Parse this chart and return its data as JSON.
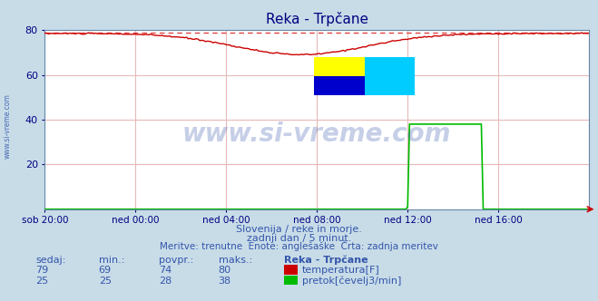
{
  "title": "Reka - Trpčane",
  "bg_color": "#c8dce8",
  "plot_bg_color": "#ffffff",
  "grid_color": "#e8b8b8",
  "title_color": "#000080",
  "tick_color": "#000080",
  "watermark_color": "#3355aa",
  "ylim": [
    0,
    80
  ],
  "yticks": [
    20,
    40,
    60,
    80
  ],
  "xlim": [
    0,
    288
  ],
  "xtick_positions": [
    0,
    48,
    96,
    144,
    192,
    240
  ],
  "xtick_labels": [
    "sob 20:00",
    "ned 00:00",
    "ned 04:00",
    "ned 08:00",
    "ned 12:00",
    "ned 16:00"
  ],
  "temp_color": "#cc0000",
  "flow_color": "#00bb00",
  "dashed_line_color": "#dd4444",
  "dashed_line_y": 79,
  "subtitle1": "Slovenija / reke in morje.",
  "subtitle2": "zadnji dan / 5 minut.",
  "subtitle3": "Meritve: trenutne  Enote: anglešaške  Črta: zadnja meritev",
  "table_headers": [
    "sedaj:",
    "min.:",
    "povpr.:",
    "maks.:",
    "Reka - Trpčane"
  ],
  "table_row1": [
    "79",
    "69",
    "74",
    "80",
    "temperatura[F]"
  ],
  "table_row2": [
    "25",
    "25",
    "28",
    "38",
    "pretok[čevelj3/min]"
  ],
  "legend_color1": "#cc0000",
  "legend_color2": "#00bb00",
  "watermark_text": "www.si-vreme.com",
  "left_label": "www.si-vreme.com",
  "logo_colors": [
    "#ffff00",
    "#00ccff",
    "#0000aa",
    "#00ccff"
  ]
}
